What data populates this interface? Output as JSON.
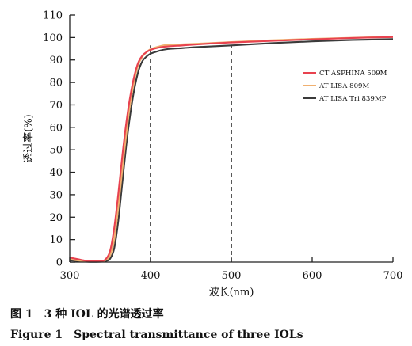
{
  "chart_data": {
    "type": "line",
    "xlabel": "波长(nm)",
    "ylabel": "透过率(%)",
    "xlim": [
      300,
      700
    ],
    "ylim": [
      0,
      110
    ],
    "xticks": [
      300,
      400,
      500,
      600,
      700
    ],
    "yticks": [
      0,
      10,
      20,
      30,
      40,
      50,
      60,
      70,
      80,
      90,
      100,
      110
    ],
    "reference_lines_x": [
      400,
      500
    ],
    "legend_position": "right",
    "series": [
      {
        "name": "CT ASPHINA 509M",
        "color": "#e8424f",
        "x": [
          300,
          310,
          320,
          330,
          340,
          345,
          350,
          355,
          360,
          365,
          370,
          375,
          380,
          385,
          390,
          395,
          400,
          410,
          420,
          440,
          460,
          500,
          550,
          600,
          650,
          700
        ],
        "y": [
          2,
          1.3,
          0.6,
          0.4,
          0.5,
          1.5,
          5,
          15,
          30,
          47,
          62,
          74,
          83,
          89,
          92,
          93.5,
          94.5,
          95.5,
          96,
          96.5,
          97,
          97.8,
          98.5,
          99.2,
          99.8,
          100.2
        ]
      },
      {
        "name": "AT LISA 809M",
        "color": "#f0b070",
        "x": [
          300,
          310,
          320,
          330,
          340,
          345,
          350,
          355,
          360,
          365,
          370,
          375,
          380,
          385,
          390,
          395,
          400,
          410,
          420,
          440,
          460,
          500,
          550,
          600,
          650,
          700
        ],
        "y": [
          1.2,
          0.7,
          0.3,
          0.2,
          0.3,
          1,
          3,
          10,
          24,
          41,
          57,
          71,
          81,
          88,
          91.5,
          93.5,
          94.8,
          96,
          96.7,
          97,
          97.3,
          98,
          98.8,
          99.4,
          99.9,
          100.3
        ]
      },
      {
        "name": "AT LISA Tri 839MP",
        "color": "#3a3a3a",
        "x": [
          300,
          310,
          320,
          330,
          340,
          345,
          350,
          355,
          360,
          365,
          370,
          375,
          380,
          385,
          390,
          395,
          400,
          410,
          420,
          440,
          460,
          500,
          550,
          600,
          650,
          700
        ],
        "y": [
          0.8,
          0.5,
          0.2,
          0.1,
          0.2,
          0.5,
          1.5,
          6,
          18,
          35,
          52,
          66,
          77,
          85,
          89.5,
          91.5,
          92.8,
          94,
          94.8,
          95.3,
          95.8,
          96.5,
          97.5,
          98.3,
          98.9,
          99.3
        ]
      }
    ]
  },
  "caption": {
    "chinese": "图 1　3 种 IOL 的光谱透过率",
    "english": "Figure 1　Spectral transmittance of three IOLs"
  }
}
